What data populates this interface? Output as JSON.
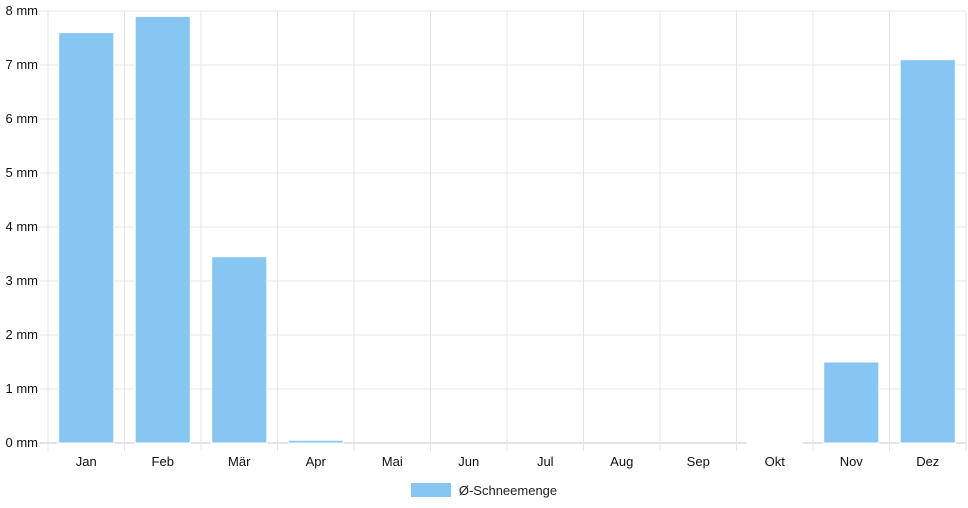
{
  "chart_data": {
    "type": "bar",
    "categories": [
      "Jan",
      "Feb",
      "Mär",
      "Apr",
      "Mai",
      "Jun",
      "Jul",
      "Aug",
      "Sep",
      "Okt",
      "Nov",
      "Dez"
    ],
    "series": [
      {
        "name": "Ø-Schneemenge",
        "values": [
          7.6,
          7.9,
          3.45,
          0.05,
          0,
          0,
          0,
          0,
          0,
          0.01,
          1.5,
          7.1
        ],
        "color": "#87c6f3"
      }
    ],
    "yticks": [
      "0 mm",
      "1 mm",
      "2 mm",
      "3 mm",
      "4 mm",
      "5 mm",
      "6 mm",
      "7 mm",
      "8 mm"
    ],
    "ylim": [
      0,
      8
    ],
    "grid": true,
    "legend_position": "bottom-center"
  }
}
